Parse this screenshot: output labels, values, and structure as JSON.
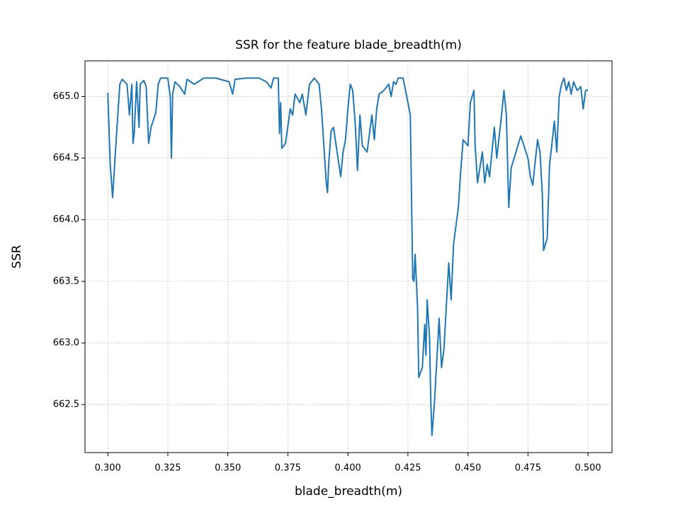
{
  "chart_data": {
    "type": "line",
    "title": "SSR for the feature blade_breadth(m)",
    "x_label": "blade_breadth(m)",
    "y_label": "SSR",
    "grid": true,
    "xlim": [
      0.2905,
      0.51
    ],
    "ylim": [
      662.11,
      665.29
    ],
    "xticks": [
      {
        "value": 0.3,
        "label": "0.300"
      },
      {
        "value": 0.325,
        "label": "0.325"
      },
      {
        "value": 0.35,
        "label": "0.350"
      },
      {
        "value": 0.375,
        "label": "0.375"
      },
      {
        "value": 0.4,
        "label": "0.400"
      },
      {
        "value": 0.425,
        "label": "0.425"
      },
      {
        "value": 0.45,
        "label": "0.450"
      },
      {
        "value": 0.475,
        "label": "0.475"
      },
      {
        "value": 0.5,
        "label": "0.500"
      }
    ],
    "yticks": [
      {
        "value": 662.5,
        "label": "662.5"
      },
      {
        "value": 663,
        "label": "663.0"
      },
      {
        "value": 663.5,
        "label": "663.5"
      },
      {
        "value": 664,
        "label": "664.0"
      },
      {
        "value": 664.5,
        "label": "664.5"
      },
      {
        "value": 665,
        "label": "665.0"
      }
    ],
    "x": [
      0.3,
      0.301,
      0.302,
      0.303,
      0.304,
      0.305,
      0.306,
      0.308,
      0.309,
      0.31,
      0.3105,
      0.311,
      0.312,
      0.313,
      0.3135,
      0.315,
      0.316,
      0.317,
      0.318,
      0.32,
      0.321,
      0.322,
      0.325,
      0.326,
      0.3265,
      0.327,
      0.328,
      0.33,
      0.332,
      0.333,
      0.336,
      0.34,
      0.345,
      0.3505,
      0.352,
      0.353,
      0.358,
      0.363,
      0.366,
      0.368,
      0.369,
      0.371,
      0.3715,
      0.372,
      0.3725,
      0.374,
      0.376,
      0.377,
      0.378,
      0.38,
      0.381,
      0.3825,
      0.384,
      0.386,
      0.388,
      0.389,
      0.39,
      0.391,
      0.3915,
      0.392,
      0.393,
      0.394,
      0.3955,
      0.397,
      0.398,
      0.399,
      0.4,
      0.401,
      0.402,
      0.403,
      0.404,
      0.405,
      0.406,
      0.408,
      0.409,
      0.41,
      0.411,
      0.412,
      0.413,
      0.415,
      0.417,
      0.418,
      0.419,
      0.42,
      0.421,
      0.423,
      0.424,
      0.425,
      0.426,
      0.427,
      0.4275,
      0.428,
      0.429,
      0.4295,
      0.431,
      0.432,
      0.4325,
      0.433,
      0.434,
      0.4345,
      0.435,
      0.436,
      0.437,
      0.438,
      0.439,
      0.44,
      0.441,
      0.442,
      0.443,
      0.444,
      0.446,
      0.447,
      0.448,
      0.45,
      0.451,
      0.4525,
      0.453,
      0.454,
      0.456,
      0.457,
      0.458,
      0.459,
      0.46,
      0.461,
      0.462,
      0.464,
      0.465,
      0.466,
      0.467,
      0.468,
      0.47,
      0.472,
      0.475,
      0.476,
      0.477,
      0.478,
      0.479,
      0.48,
      0.481,
      0.4815,
      0.483,
      0.484,
      0.485,
      0.486,
      0.487,
      0.488,
      0.489,
      0.49,
      0.491,
      0.492,
      0.493,
      0.494,
      0.4955,
      0.497,
      0.498,
      0.499,
      0.5
    ],
    "series": [
      {
        "color": "#1f77b4",
        "values": [
          665.03,
          664.45,
          664.18,
          664.5,
          664.8,
          665.1,
          665.14,
          665.1,
          664.85,
          665.1,
          664.62,
          664.7,
          665.12,
          664.75,
          665.1,
          665.13,
          665.08,
          664.62,
          664.75,
          664.87,
          665.1,
          665.15,
          665.15,
          665.0,
          664.5,
          665.02,
          665.12,
          665.08,
          665.02,
          665.14,
          665.1,
          665.15,
          665.15,
          665.12,
          665.02,
          665.14,
          665.15,
          665.15,
          665.12,
          665.07,
          665.15,
          665.15,
          664.7,
          664.95,
          664.58,
          664.62,
          664.9,
          664.85,
          665.02,
          664.95,
          665.02,
          664.85,
          665.1,
          665.15,
          665.1,
          664.9,
          664.6,
          664.3,
          664.22,
          664.45,
          664.72,
          664.75,
          664.55,
          664.35,
          664.55,
          664.65,
          664.9,
          665.1,
          665.05,
          664.8,
          664.4,
          664.85,
          664.6,
          664.55,
          664.7,
          664.85,
          664.65,
          664.9,
          665.02,
          665.05,
          665.1,
          665.0,
          665.12,
          665.1,
          665.15,
          665.15,
          665.05,
          664.95,
          664.85,
          663.52,
          663.5,
          663.72,
          663.3,
          662.72,
          662.8,
          663.15,
          662.9,
          663.35,
          663.05,
          662.55,
          662.25,
          662.5,
          662.85,
          663.2,
          662.8,
          662.95,
          663.3,
          663.65,
          663.35,
          663.8,
          664.1,
          664.4,
          664.65,
          664.6,
          664.95,
          665.05,
          664.6,
          664.3,
          664.55,
          664.3,
          664.45,
          664.35,
          664.55,
          664.75,
          664.5,
          664.85,
          665.05,
          664.85,
          664.1,
          664.42,
          664.55,
          664.68,
          664.5,
          664.35,
          664.28,
          664.47,
          664.65,
          664.55,
          664.2,
          663.75,
          663.85,
          664.45,
          664.62,
          664.8,
          664.55,
          665.0,
          665.1,
          665.15,
          665.05,
          665.12,
          665.02,
          665.12,
          665.05,
          665.08,
          664.9,
          665.05,
          665.05
        ]
      }
    ]
  }
}
